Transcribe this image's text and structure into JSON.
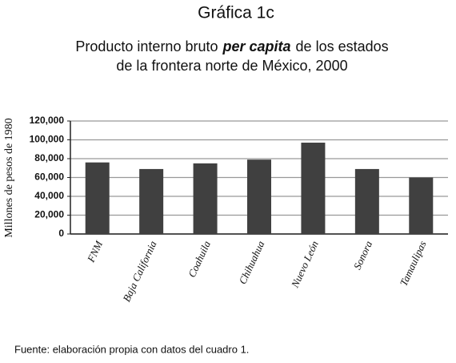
{
  "chart_data": {
    "type": "bar",
    "title": "Gráfica 1c",
    "subtitle_lines": [
      [
        "Producto interno bruto",
        "per capita",
        "de los estados"
      ],
      [
        "de la frontera norte de México, 2000"
      ]
    ],
    "ylabel": "Millones de pesos de 1980",
    "categories": [
      "FNM",
      "Baja California",
      "Coahuila",
      "Chihuahua",
      "Nuevo León",
      "Sonora",
      "Tamaulipas"
    ],
    "values": [
      76000,
      69000,
      75000,
      79000,
      97000,
      69000,
      60000
    ],
    "color": "#404040",
    "ylim": [
      0,
      120000
    ],
    "yticks": [
      0,
      {
        "value": 20000,
        "label": "20,000"
      },
      {
        "value": 40000,
        "label": "40,000"
      },
      {
        "value": 60000,
        "label": "60,000"
      },
      {
        "value": 80000,
        "label": "80,000"
      },
      {
        "value": 100000,
        "label": "100,000"
      },
      {
        "value": 120000,
        "label": "120,000"
      }
    ],
    "grid": true,
    "source": "Fuente: elaboración propia con datos del cuadro 1."
  }
}
